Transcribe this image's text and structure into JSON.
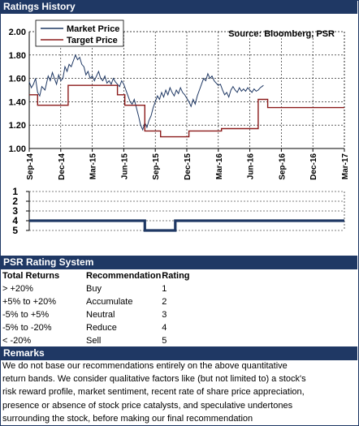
{
  "header": {
    "title": "Ratings History"
  },
  "chart_data": [
    {
      "type": "line",
      "ylim": [
        1.0,
        2.0
      ],
      "yticks": [
        "2.00",
        "1.80",
        "1.60",
        "1.40",
        "1.20",
        "1.00"
      ],
      "x_tick_labels": [
        "Sep-14",
        "Dec-14",
        "Mar-15",
        "Jun-15",
        "Sep-15",
        "Dec-15",
        "Mar-16",
        "Jun-16",
        "Sep-16",
        "Dec-16",
        "Mar-17"
      ],
      "xlim": [
        "Sep-14",
        "Mar-17"
      ],
      "annotation": "Source: Bloomberg, PSR",
      "legend_position": "top-left",
      "grid": true,
      "colors": {
        "market": "#1f3864",
        "target": "#8b1a1a"
      },
      "series": [
        {
          "name": "Market Price",
          "x_months": [
            0,
            0.2,
            0.4,
            0.6,
            0.8,
            1.0,
            1.2,
            1.5,
            1.8,
            2.0,
            2.2,
            2.4,
            2.6,
            2.8,
            3.0,
            3.2,
            3.4,
            3.6,
            3.8,
            4.0,
            4.2,
            4.4,
            4.6,
            4.8,
            5.0,
            5.2,
            5.4,
            5.6,
            5.8,
            6.0,
            6.2,
            6.4,
            6.6,
            6.8,
            7.0,
            7.2,
            7.4,
            7.6,
            7.8,
            8.0,
            8.2,
            8.4,
            8.6,
            8.8,
            9.0,
            9.2,
            9.4,
            9.6,
            9.8,
            10.0,
            10.2,
            10.4,
            10.6,
            10.8,
            11.0,
            11.2,
            11.4,
            11.6,
            11.8,
            12.0,
            12.2,
            12.4,
            12.6,
            12.8,
            13.0,
            13.2,
            13.4,
            13.6,
            13.8,
            14.0,
            14.2,
            14.4,
            14.6,
            14.8,
            15.0,
            15.2,
            15.4,
            15.6,
            15.8,
            16.0,
            16.2,
            16.4,
            16.6,
            16.8,
            17.0,
            17.2,
            17.4,
            17.6,
            17.8,
            18.0,
            18.2,
            18.4,
            18.6,
            18.8,
            19.0,
            19.2,
            19.4,
            19.6,
            19.8,
            20.0,
            20.2,
            20.4,
            20.6,
            20.8,
            21.0,
            21.2,
            21.4,
            21.6,
            21.8,
            22.0,
            22.3
          ],
          "values": [
            1.57,
            1.52,
            1.55,
            1.6,
            1.48,
            1.45,
            1.53,
            1.5,
            1.62,
            1.58,
            1.65,
            1.6,
            1.55,
            1.63,
            1.58,
            1.6,
            1.7,
            1.66,
            1.72,
            1.7,
            1.75,
            1.8,
            1.76,
            1.78,
            1.72,
            1.7,
            1.63,
            1.66,
            1.6,
            1.62,
            1.58,
            1.62,
            1.66,
            1.6,
            1.58,
            1.62,
            1.56,
            1.58,
            1.55,
            1.6,
            1.57,
            1.55,
            1.53,
            1.58,
            1.55,
            1.5,
            1.45,
            1.4,
            1.38,
            1.42,
            1.35,
            1.28,
            1.2,
            1.16,
            1.22,
            1.18,
            1.24,
            1.28,
            1.35,
            1.4,
            1.45,
            1.42,
            1.48,
            1.44,
            1.5,
            1.46,
            1.52,
            1.48,
            1.45,
            1.5,
            1.47,
            1.52,
            1.48,
            1.46,
            1.43,
            1.4,
            1.36,
            1.42,
            1.38,
            1.45,
            1.5,
            1.55,
            1.6,
            1.58,
            1.64,
            1.6,
            1.62,
            1.58,
            1.56,
            1.54,
            1.55,
            1.5,
            1.46,
            1.48,
            1.44,
            1.5,
            1.53,
            1.5,
            1.48,
            1.52,
            1.49,
            1.51,
            1.49,
            1.52,
            1.5,
            1.48,
            1.51,
            1.49,
            1.5,
            1.52,
            1.54
          ]
        },
        {
          "name": "Target Price",
          "x_months": [
            0,
            0.8,
            0.8,
            3.7,
            3.7,
            8.4,
            8.4,
            9.1,
            9.1,
            11.0,
            11.0,
            12.5,
            12.5,
            15.2,
            15.2,
            18.3,
            18.3,
            21.8,
            21.8,
            22.7,
            22.7,
            30
          ],
          "values": [
            1.46,
            1.46,
            1.37,
            1.37,
            1.54,
            1.54,
            1.46,
            1.46,
            1.37,
            1.37,
            1.15,
            1.15,
            1.1,
            1.1,
            1.15,
            1.15,
            1.17,
            1.17,
            1.42,
            1.42,
            1.35,
            1.35
          ]
        }
      ]
    },
    {
      "type": "line",
      "ylim": [
        1,
        5
      ],
      "yticks": [
        "1",
        "2",
        "3",
        "4",
        "5"
      ],
      "series": [
        {
          "x_months": [
            0,
            11.0,
            11.0,
            13.9,
            13.9,
            30
          ],
          "values": [
            4,
            4,
            5,
            5,
            4,
            4
          ]
        }
      ]
    }
  ],
  "rating_system": {
    "title": "PSR Rating System",
    "headers": [
      "Total Returns",
      "Recommendation",
      "Rating"
    ],
    "rows": [
      [
        "> +20%",
        "Buy",
        "1"
      ],
      [
        "+5% to +20%",
        "Accumulate",
        "2"
      ],
      [
        "-5% to +5%",
        "Neutral",
        "3"
      ],
      [
        "-5% to -20%",
        "Reduce",
        "4"
      ],
      [
        "< -20%",
        "Sell",
        "5"
      ]
    ]
  },
  "remarks": {
    "title": "Remarks",
    "lines": [
      "We do not base our recommendations entirely on the  above quantitative",
      "return bands.  We consider qualitative factors like (but not limited to) a stock's",
      "risk reward profile, market sentiment, recent rate of share price appreciation,",
      "presence or absence of stock price catalysts, and speculative undertones",
      "surrounding the stock, before making our final recommendation"
    ]
  }
}
